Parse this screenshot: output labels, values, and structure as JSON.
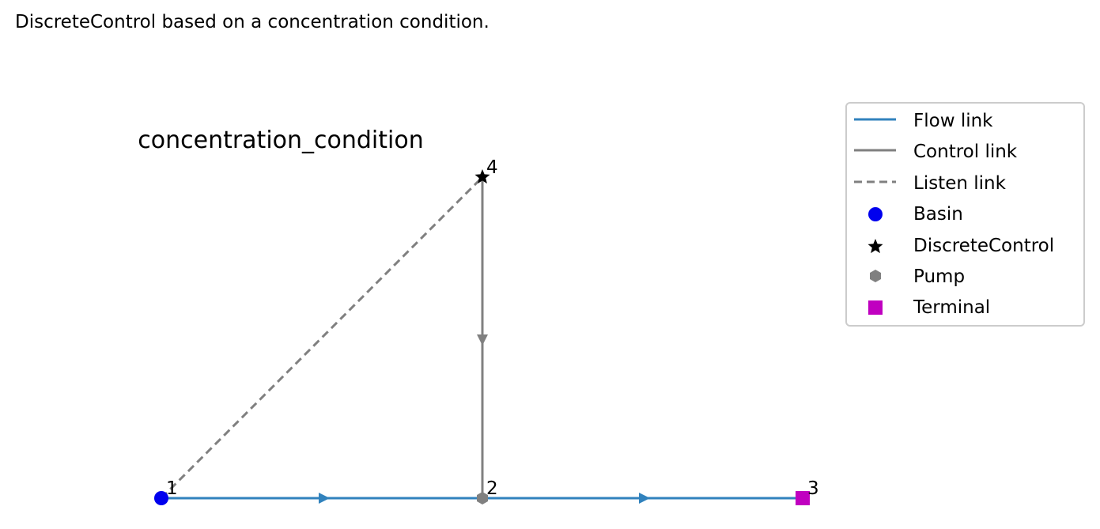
{
  "caption": "DiscreteControl based on a concentration condition.",
  "title": "concentration_condition",
  "nodes": [
    {
      "id": "1",
      "type": "Basin"
    },
    {
      "id": "2",
      "type": "Pump"
    },
    {
      "id": "3",
      "type": "Terminal"
    },
    {
      "id": "4",
      "type": "DiscreteControl"
    }
  ],
  "links": [
    {
      "from": "1",
      "to": "2",
      "type": "Flow link"
    },
    {
      "from": "2",
      "to": "3",
      "type": "Flow link"
    },
    {
      "from": "4",
      "to": "2",
      "type": "Control link"
    },
    {
      "from": "1",
      "to": "4",
      "type": "Listen link"
    }
  ],
  "legend": {
    "items": [
      {
        "label": "Flow link",
        "marker": "line",
        "color": "#3182bd"
      },
      {
        "label": "Control link",
        "marker": "line",
        "color": "#808080"
      },
      {
        "label": "Listen link",
        "marker": "dashed-line",
        "color": "#808080"
      },
      {
        "label": "Basin",
        "marker": "circle",
        "color": "#0000ee"
      },
      {
        "label": "DiscreteControl",
        "marker": "star",
        "color": "#000000"
      },
      {
        "label": "Pump",
        "marker": "hexagon",
        "color": "#808080"
      },
      {
        "label": "Terminal",
        "marker": "square",
        "color": "#c000c0"
      }
    ]
  },
  "colors": {
    "flow_link": "#3182bd",
    "control_link": "#808080",
    "listen_link": "#808080",
    "basin": "#0000ee",
    "discrete_control": "#000000",
    "pump": "#808080",
    "terminal": "#c000c0"
  }
}
